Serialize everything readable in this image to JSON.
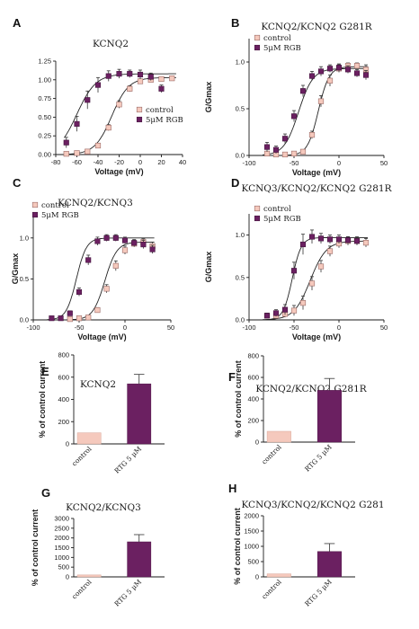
{
  "colors": {
    "control": "#f5c9bd",
    "rgb": "#6b2061",
    "control_border": "#9a6a66"
  },
  "chart_data": [
    {
      "panel": "A",
      "type": "scatter",
      "title": "KCNQ2",
      "xlabel": "Voltage (mV)",
      "ylabel": "",
      "xlim": [
        -80,
        40
      ],
      "ylim": [
        0,
        1.25
      ],
      "xticks": [
        -80,
        -60,
        -40,
        -20,
        0,
        20,
        40
      ],
      "yticks": [
        0,
        0.25,
        0.5,
        0.75,
        1,
        1.25
      ],
      "ytick_labels": [
        "0.00",
        "0.25",
        "0.50",
        "0.75",
        "1.00",
        "1.25"
      ],
      "legend": "bottom-right",
      "series": [
        {
          "name": "control",
          "style": "control",
          "x": [
            -70,
            -60,
            -50,
            -40,
            -30,
            -20,
            -10,
            0,
            10,
            20,
            30
          ],
          "y": [
            0.01,
            0.02,
            0.04,
            0.12,
            0.36,
            0.67,
            0.88,
            0.98,
            1.0,
            1.01,
            1.02
          ],
          "err": [
            0.01,
            0.01,
            0.02,
            0.03,
            0.04,
            0.05,
            0.04,
            0.03,
            0.03,
            0.03,
            0.03
          ],
          "fit": {
            "vhalf": -27,
            "k": 8,
            "max": 1.03
          }
        },
        {
          "name": "5μM RGB",
          "style": "rgb",
          "x": [
            -70,
            -60,
            -50,
            -40,
            -30,
            -20,
            -10,
            0,
            10,
            20
          ],
          "y": [
            0.16,
            0.41,
            0.73,
            0.93,
            1.05,
            1.08,
            1.08,
            1.07,
            1.04,
            0.88
          ],
          "err": [
            0.07,
            0.1,
            0.12,
            0.1,
            0.07,
            0.06,
            0.05,
            0.06,
            0.05,
            0.05
          ],
          "fit": {
            "vhalf": -60,
            "k": 9,
            "max": 1.08
          }
        }
      ]
    },
    {
      "panel": "B",
      "type": "scatter",
      "title": "KCNQ2/KCNQ2 G281R",
      "xlabel": "Voltage (mV)",
      "ylabel": "G/Gmax",
      "xlim": [
        -100,
        50
      ],
      "ylim": [
        0,
        1.25
      ],
      "xticks": [
        -100,
        -50,
        0,
        50
      ],
      "yticks": [
        0,
        0.5,
        1
      ],
      "ytick_labels": [
        "0.0",
        "0.5",
        "1.0"
      ],
      "legend": "top-left",
      "series": [
        {
          "name": "control",
          "style": "control",
          "x": [
            -80,
            -70,
            -60,
            -50,
            -40,
            -30,
            -20,
            -10,
            0,
            10,
            20,
            30
          ],
          "y": [
            0.02,
            0.01,
            0.01,
            0.02,
            0.04,
            0.22,
            0.58,
            0.8,
            0.93,
            0.96,
            0.96,
            0.92
          ],
          "err": [
            0.01,
            0.01,
            0.01,
            0.01,
            0.02,
            0.04,
            0.06,
            0.06,
            0.04,
            0.03,
            0.03,
            0.05
          ],
          "fit": {
            "vhalf": -23,
            "k": 6,
            "max": 0.95
          }
        },
        {
          "name": "5μM RGB",
          "style": "rgb",
          "x": [
            -80,
            -70,
            -60,
            -50,
            -40,
            -30,
            -20,
            -10,
            0,
            10,
            20,
            30
          ],
          "y": [
            0.09,
            0.06,
            0.18,
            0.42,
            0.69,
            0.85,
            0.9,
            0.93,
            0.94,
            0.92,
            0.88,
            0.86
          ],
          "err": [
            0.05,
            0.04,
            0.05,
            0.06,
            0.06,
            0.05,
            0.05,
            0.04,
            0.04,
            0.04,
            0.04,
            0.05
          ],
          "fit": {
            "vhalf": -45,
            "k": 8,
            "max": 0.93
          }
        }
      ]
    },
    {
      "panel": "C",
      "type": "scatter",
      "title": "KCNQ2/KCNQ3",
      "xlabel": "Voltage (mV)",
      "ylabel": "G/Gmax",
      "xlim": [
        -100,
        50
      ],
      "ylim": [
        0,
        1.25
      ],
      "xticks": [
        -100,
        -50,
        0,
        50
      ],
      "yticks": [
        0,
        0.5,
        1
      ],
      "ytick_labels": [
        "0.0",
        "0.5",
        "1.0"
      ],
      "legend": "top-left",
      "series": [
        {
          "name": "control",
          "style": "control",
          "x": [
            -60,
            -50,
            -40,
            -30,
            -20,
            -10,
            0,
            10,
            20,
            30
          ],
          "y": [
            0.01,
            0.02,
            0.03,
            0.12,
            0.38,
            0.66,
            0.85,
            0.93,
            0.95,
            0.9
          ],
          "err": [
            0.01,
            0.01,
            0.02,
            0.03,
            0.05,
            0.06,
            0.05,
            0.04,
            0.04,
            0.05
          ],
          "fit": {
            "vhalf": -22,
            "k": 6.5,
            "max": 0.95
          }
        },
        {
          "name": "5μM RGB",
          "style": "rgb",
          "x": [
            -80,
            -70,
            -60,
            -50,
            -40,
            -30,
            -20,
            -10,
            0,
            10,
            20,
            30
          ],
          "y": [
            0.02,
            0.02,
            0.08,
            0.34,
            0.73,
            0.96,
            1.0,
            1.0,
            0.97,
            0.94,
            0.92,
            0.86
          ],
          "err": [
            0.01,
            0.01,
            0.03,
            0.05,
            0.06,
            0.05,
            0.04,
            0.04,
            0.04,
            0.04,
            0.05,
            0.05
          ],
          "fit": {
            "vhalf": -53,
            "k": 5.5,
            "max": 1.0
          }
        }
      ]
    },
    {
      "panel": "D",
      "type": "scatter",
      "title": "KCNQ3/KCNQ2/KCNQ2 G281R",
      "xlabel": "Voltage (mV)",
      "ylabel": "G/Gmax",
      "xlim": [
        -100,
        50
      ],
      "ylim": [
        0,
        1.25
      ],
      "xticks": [
        -100,
        -50,
        0,
        50
      ],
      "yticks": [
        0,
        0.5,
        1
      ],
      "ytick_labels": [
        "0.0",
        "0.5",
        "1.0"
      ],
      "legend": "top-left",
      "series": [
        {
          "name": "control",
          "style": "control",
          "x": [
            -80,
            -70,
            -60,
            -50,
            -40,
            -30,
            -20,
            -10,
            0,
            10,
            20,
            30
          ],
          "y": [
            0.05,
            0.05,
            0.07,
            0.11,
            0.2,
            0.43,
            0.63,
            0.81,
            0.9,
            0.93,
            0.93,
            0.91
          ],
          "err": [
            0.03,
            0.03,
            0.04,
            0.06,
            0.08,
            0.08,
            0.07,
            0.06,
            0.05,
            0.05,
            0.05,
            0.05
          ],
          "fit": {
            "vhalf": -32,
            "k": 9,
            "max": 0.93
          }
        },
        {
          "name": "5μM RGB",
          "style": "rgb",
          "x": [
            -80,
            -70,
            -60,
            -50,
            -40,
            -30,
            -20,
            -10,
            0,
            10,
            20
          ],
          "y": [
            0.05,
            0.08,
            0.12,
            0.58,
            0.89,
            0.98,
            0.96,
            0.95,
            0.95,
            0.94,
            0.93
          ],
          "err": [
            0.03,
            0.04,
            0.06,
            0.1,
            0.12,
            0.08,
            0.06,
            0.05,
            0.05,
            0.04,
            0.04
          ],
          "fit": {
            "vhalf": -52,
            "k": 5,
            "max": 0.97
          }
        }
      ]
    },
    {
      "panel": "E",
      "type": "bar",
      "title": "KCNQ2",
      "ylabel": "% of control current",
      "categories": [
        "control",
        "RTG 5 μM"
      ],
      "values": [
        100,
        540
      ],
      "errors": [
        0,
        85
      ],
      "ylim": [
        0,
        800
      ],
      "yticks": [
        0,
        200,
        400,
        600,
        800
      ]
    },
    {
      "panel": "F",
      "type": "bar",
      "title": "KCNQ2/KCNQ2 G281R",
      "ylabel": "% of control current",
      "categories": [
        "control",
        "RTG 5 μM"
      ],
      "values": [
        100,
        480
      ],
      "errors": [
        0,
        110
      ],
      "ylim": [
        0,
        800
      ],
      "yticks": [
        0,
        200,
        400,
        600,
        800
      ]
    },
    {
      "panel": "G",
      "type": "bar",
      "title": "KCNQ2/KCNQ3",
      "ylabel": "% of control current",
      "categories": [
        "control",
        "RTG 5 μM"
      ],
      "values": [
        100,
        1800
      ],
      "errors": [
        0,
        370
      ],
      "ylim": [
        0,
        3000
      ],
      "yticks": [
        0,
        500,
        1000,
        1500,
        2000,
        2500,
        3000
      ]
    },
    {
      "panel": "H",
      "type": "bar",
      "title": "KCNQ3/KCNQ2/KCNQ2 G281",
      "ylabel": "% of control current",
      "categories": [
        "control",
        "RTG 5 μM"
      ],
      "values": [
        100,
        830
      ],
      "errors": [
        0,
        260
      ],
      "ylim": [
        0,
        2000
      ],
      "yticks": [
        0,
        500,
        1000,
        1500,
        2000
      ]
    }
  ]
}
